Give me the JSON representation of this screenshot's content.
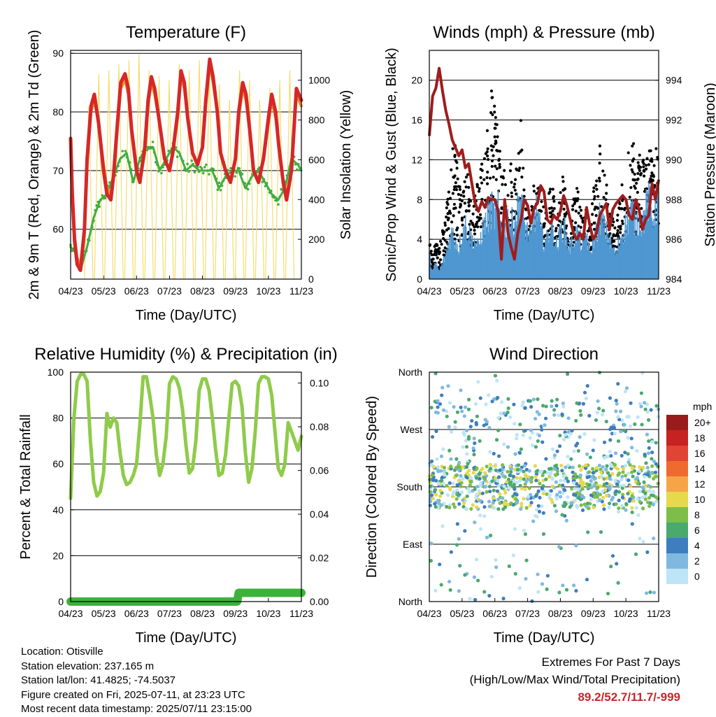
{
  "chart_data": [
    {
      "type": "line",
      "title": "Temperature (F)",
      "xlabel": "Time (Day/UTC)",
      "ylabel": "2m & 9m T (Red, Orange) & 2m Td (Green)",
      "y2label": "Solar Insolation (Yellow)",
      "x_ticks": [
        "04/23",
        "05/23",
        "06/23",
        "07/23",
        "08/23",
        "09/23",
        "10/23",
        "11/23"
      ],
      "ylim": [
        51.5,
        90.5
      ],
      "y_ticks": [
        60,
        70,
        80,
        90
      ],
      "y2lim": [
        0,
        1150
      ],
      "y2_ticks": [
        0,
        200,
        400,
        600,
        800,
        1000
      ],
      "grid": true,
      "series": [
        {
          "color": "#d62728",
          "x": [
            0,
            0.05,
            0.12,
            0.2,
            0.3,
            0.42,
            0.5,
            0.62,
            0.72,
            0.85,
            1.0,
            1.1,
            1.22,
            1.3,
            1.42,
            1.52,
            1.65,
            1.75,
            1.85,
            2.0,
            2.1,
            2.25,
            2.35,
            2.45,
            2.55,
            2.7,
            2.85,
            3.0,
            3.1,
            3.25,
            3.35,
            3.45,
            3.55,
            3.7,
            3.85,
            4.0,
            4.1,
            4.22,
            4.32,
            4.45,
            4.55,
            4.7,
            4.85,
            5.0,
            5.1,
            5.22,
            5.32,
            5.45,
            5.55,
            5.7,
            5.85,
            6.0,
            6.1,
            6.22,
            6.32,
            6.45,
            6.55,
            6.7,
            6.85,
            7.0
          ],
          "y": [
            75.5,
            66,
            58,
            54,
            53,
            60,
            72,
            81,
            83,
            78,
            70,
            66,
            65,
            69,
            78,
            85,
            86.5,
            84,
            77,
            70,
            68,
            74,
            82,
            86,
            84,
            78,
            72,
            70,
            73,
            80,
            87,
            85,
            79,
            73,
            71,
            74,
            82,
            89,
            86,
            80,
            73,
            70,
            68,
            72,
            80,
            85,
            83,
            76,
            70,
            68,
            72,
            79,
            83,
            80,
            74,
            68,
            65,
            70,
            84,
            82
          ]
        },
        {
          "color": "#f28c28",
          "x": [
            0,
            0.1,
            0.2,
            0.3,
            0.42,
            0.5,
            0.62,
            0.72,
            0.85,
            1.0,
            1.1,
            1.22,
            1.3,
            1.42,
            1.52,
            1.65,
            1.75,
            1.85,
            2.0,
            2.1,
            2.25,
            2.35,
            2.45,
            2.55,
            2.7,
            2.85,
            3.0,
            3.1,
            3.25,
            3.35,
            3.45,
            3.55,
            3.7,
            3.85,
            4.0,
            4.1,
            4.22,
            4.32,
            4.45,
            4.55,
            4.7,
            4.85,
            5.0,
            5.1,
            5.22,
            5.32,
            5.45,
            5.55,
            5.7,
            5.85,
            6.0,
            6.1,
            6.22,
            6.32,
            6.45,
            6.55,
            6.7,
            6.85,
            7.0
          ],
          "y": [
            75,
            60,
            55,
            54,
            60,
            71,
            80,
            82,
            78,
            71,
            67,
            66,
            69,
            77,
            84,
            85.5,
            83,
            77,
            70,
            68,
            73,
            81,
            85,
            83,
            78,
            72,
            70,
            73,
            79,
            86,
            84,
            79,
            73,
            71,
            74,
            81,
            88,
            85,
            80,
            73,
            70,
            68,
            72,
            79,
            84,
            82,
            76,
            70,
            68,
            72,
            78,
            82,
            79,
            74,
            68,
            66,
            70,
            83,
            81
          ]
        },
        {
          "color": "#3fae3f",
          "x": [
            0,
            0.15,
            0.3,
            0.5,
            0.7,
            0.9,
            1.1,
            1.3,
            1.5,
            1.7,
            1.9,
            2.1,
            2.3,
            2.5,
            2.7,
            2.9,
            3.1,
            3.3,
            3.5,
            3.7,
            3.9,
            4.1,
            4.3,
            4.5,
            4.7,
            4.9,
            5.1,
            5.3,
            5.5,
            5.7,
            5.9,
            6.1,
            6.3,
            6.5,
            6.7,
            6.9,
            7.0
          ],
          "y": [
            57,
            56,
            53,
            57,
            62,
            65,
            66,
            69,
            72,
            73,
            68,
            72,
            74,
            74,
            70,
            72,
            74,
            73,
            70,
            71,
            70,
            70,
            70,
            67,
            69,
            70,
            70,
            67,
            69,
            70,
            68,
            66,
            65,
            67,
            72,
            71,
            70
          ]
        }
      ],
      "solar_peaks": [
        870,
        1030,
        1050,
        1080,
        1100,
        1130,
        1050,
        1020,
        1000,
        1080,
        1050,
        1100,
        1070,
        980,
        900,
        1050,
        1000,
        900,
        960,
        1000,
        1050
      ]
    },
    {
      "type": "line",
      "title": "Winds (mph) & Pressure (mb)",
      "xlabel": "Time (Day/UTC)",
      "ylabel": "Sonic/Prop Wind & Gust (Blue, Black)",
      "y2label": "Station Pressure (Maroon)",
      "x_ticks": [
        "04/23",
        "05/23",
        "06/23",
        "07/23",
        "08/23",
        "09/23",
        "10/23",
        "11/23"
      ],
      "ylim": [
        0,
        23
      ],
      "y_ticks": [
        0,
        4,
        8,
        12,
        16,
        20
      ],
      "y2lim": [
        984,
        995.5
      ],
      "y2_ticks": [
        984,
        986,
        988,
        990,
        992,
        994
      ],
      "grid": true,
      "series": [
        {
          "name": "",
          "color": "#a01c1c",
          "x": [
            0,
            0.1,
            0.2,
            0.3,
            0.4,
            0.5,
            0.6,
            0.7,
            0.8,
            0.9,
            1.0,
            1.1,
            1.2,
            1.3,
            1.4,
            1.5,
            1.6,
            1.7,
            1.8,
            1.9,
            2.0,
            2.1,
            2.2,
            2.3,
            2.4,
            2.5,
            2.6,
            2.7,
            2.8,
            2.9,
            3.0,
            3.1,
            3.2,
            3.3,
            3.4,
            3.5,
            3.6,
            3.7,
            3.8,
            3.9,
            4.0,
            4.1,
            4.2,
            4.3,
            4.4,
            4.5,
            4.6,
            4.7,
            4.8,
            4.9,
            5.0,
            5.1,
            5.2,
            5.3,
            5.4,
            5.5,
            5.6,
            5.7,
            5.8,
            5.9,
            6.0,
            6.1,
            6.2,
            6.3,
            6.4,
            6.5,
            6.6,
            6.7,
            6.8,
            6.9,
            7.0
          ],
          "y": [
            991.2,
            993.2,
            993.6,
            994.6,
            993.5,
            992.5,
            991.8,
            991.0,
            990.6,
            990.2,
            990.5,
            989.6,
            989.8,
            988.8,
            987.8,
            987.4,
            987.9,
            987.6,
            988.1,
            988.0,
            988.0,
            987.4,
            985.0,
            988.0,
            986.3,
            985.6,
            985.0,
            986.3,
            987.0,
            988.0,
            987.7,
            986.8,
            987.6,
            987.8,
            988.7,
            988.4,
            987.0,
            986.8,
            987.2,
            987.0,
            987.4,
            988.2,
            987.7,
            987.0,
            986.3,
            986.0,
            986.3,
            986.0,
            987.6,
            986.7,
            986.0,
            986.3,
            987.2,
            987.5,
            987.8,
            986.5,
            987.5,
            987.8,
            988.0,
            988.2,
            988.0,
            987.2,
            987.0,
            988.0,
            987.5,
            986.5,
            987.0,
            987.2,
            988.8,
            988.0,
            989.0
          ]
        }
      ],
      "wind_blue_envelope": [
        3,
        1,
        2,
        1,
        2,
        3,
        5,
        6,
        5,
        4,
        6,
        7,
        6,
        5,
        5,
        4,
        6,
        7,
        8,
        9,
        8,
        9,
        7,
        6,
        8,
        7,
        8,
        9,
        11,
        7,
        6,
        5,
        8,
        9,
        6,
        5,
        5,
        7,
        6,
        4,
        6,
        7,
        5,
        4,
        5,
        6,
        5,
        4,
        6,
        3,
        5,
        6,
        8,
        7,
        6,
        5,
        4,
        3,
        5,
        6,
        7,
        8,
        9,
        7,
        8,
        7,
        9,
        10,
        8,
        9,
        11
      ],
      "gust_black_envelope": [
        6,
        3,
        4,
        3,
        5,
        7,
        10,
        13,
        15,
        11,
        9,
        12,
        10,
        8,
        11,
        9,
        13,
        14,
        16,
        19,
        18,
        15,
        12,
        11,
        9,
        12,
        10,
        13,
        17,
        9,
        8,
        6,
        11,
        13,
        9,
        7,
        8,
        10,
        9,
        6,
        9,
        11,
        7,
        6,
        8,
        10,
        8,
        6,
        9,
        5,
        9,
        10,
        14,
        12,
        10,
        8,
        7,
        5,
        8,
        10,
        12,
        14,
        15,
        11,
        13,
        12,
        14,
        16,
        12,
        13,
        15
      ]
    },
    {
      "type": "line",
      "title": "Relative Humidity (%) & Precipitation (in)",
      "xlabel": "Time (Day/UTC)",
      "ylabel": "Percent & Total Rainfall",
      "x_ticks": [
        "04/23",
        "05/23",
        "06/23",
        "07/23",
        "08/23",
        "09/23",
        "10/23",
        "11/23"
      ],
      "ylim": [
        0,
        100
      ],
      "y_ticks": [
        0,
        20,
        40,
        60,
        80,
        100
      ],
      "y2lim": [
        0,
        0.105
      ],
      "y2_ticks": [
        0.0,
        0.02,
        0.04,
        0.06,
        0.08,
        0.1
      ],
      "grid": true,
      "series": [
        {
          "name": "",
          "color": "#8fcb4a",
          "x": [
            0,
            0.1,
            0.2,
            0.3,
            0.4,
            0.5,
            0.6,
            0.7,
            0.8,
            0.9,
            1.0,
            1.1,
            1.2,
            1.3,
            1.4,
            1.5,
            1.6,
            1.7,
            1.8,
            1.9,
            2.0,
            2.1,
            2.2,
            2.3,
            2.4,
            2.5,
            2.6,
            2.7,
            2.8,
            2.9,
            3.0,
            3.1,
            3.2,
            3.3,
            3.4,
            3.5,
            3.6,
            3.7,
            3.8,
            3.9,
            4.0,
            4.1,
            4.2,
            4.3,
            4.4,
            4.5,
            4.6,
            4.7,
            4.8,
            4.9,
            5.0,
            5.1,
            5.2,
            5.3,
            5.4,
            5.5,
            5.6,
            5.7,
            5.8,
            5.9,
            6.0,
            6.1,
            6.2,
            6.3,
            6.4,
            6.5,
            6.6,
            6.7,
            6.8,
            6.9,
            7.0
          ],
          "y": [
            45,
            80,
            96,
            99,
            99,
            96,
            70,
            52,
            46,
            48,
            56,
            82,
            76,
            80,
            78,
            65,
            55,
            51,
            52,
            55,
            60,
            77,
            98,
            98,
            90,
            80,
            64,
            55,
            60,
            72,
            95,
            98,
            97,
            93,
            83,
            68,
            56,
            58,
            70,
            92,
            97,
            97,
            92,
            80,
            66,
            55,
            56,
            64,
            80,
            95,
            96,
            94,
            85,
            65,
            52,
            58,
            74,
            95,
            98,
            98,
            97,
            90,
            74,
            58,
            55,
            60,
            78,
            74,
            70,
            66,
            72
          ]
        },
        {
          "name": "",
          "color": "#3cb23c",
          "x": [
            0,
            5.05,
            5.1,
            7.0
          ],
          "y": [
            0.0,
            0.0,
            0.004,
            0.004
          ],
          "axis": "y2"
        }
      ]
    },
    {
      "type": "scatter",
      "title": "Wind Direction",
      "xlabel": "Time (Day/UTC)",
      "ylabel": "Direction (Colored By Speed)",
      "x_ticks": [
        "04/23",
        "05/23",
        "06/23",
        "07/23",
        "08/23",
        "09/23",
        "10/23",
        "11/23"
      ],
      "y_ticks": [
        "North",
        "East",
        "South",
        "West",
        "North"
      ],
      "ylim": [
        0,
        360
      ],
      "grid": true,
      "colorbar": {
        "title": "mph",
        "labels": [
          "20+",
          "18",
          "16",
          "14",
          "12",
          "10",
          "8",
          "6",
          "4",
          "2",
          "0"
        ],
        "colors": [
          "#9a1b1b",
          "#c62222",
          "#e04433",
          "#ef6a2e",
          "#f5a547",
          "#e6d94d",
          "#7dbd4a",
          "#4aa96c",
          "#3e7ebf",
          "#7fb9e0",
          "#bde4f7"
        ]
      }
    }
  ],
  "footer": {
    "location": "Location: Otisville",
    "elevation": "Station elevation: 237.165 m",
    "latlon": "Station lat/lon: 41.4825; -74.5037",
    "created": "Figure created on Fri, 2025-07-11, at 23:23 UTC",
    "recent": "Most recent data timestamp: 2025/07/11 23:15:00"
  },
  "extremes": {
    "title": "Extremes For Past 7 Days",
    "subtitle": "(High/Low/Max Wind/Total Precipitation)",
    "values": "89.2/52.7/11.7/-999"
  }
}
